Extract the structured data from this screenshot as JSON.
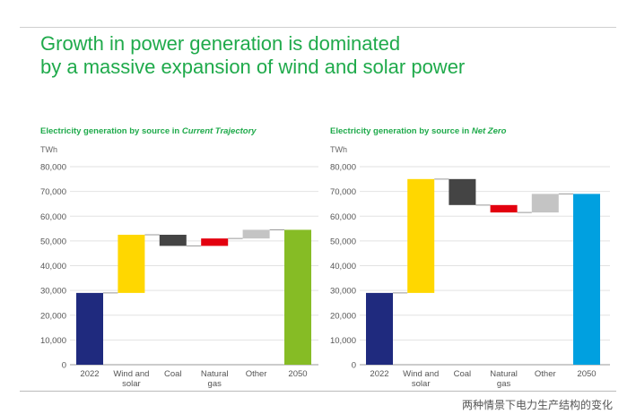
{
  "title_line1": "Growth in power generation is dominated",
  "title_line2": "by a massive expansion of wind and solar power",
  "caption": "两种情景下电力生产结构的变化",
  "chart_data": [
    {
      "type": "waterfall",
      "title_prefix": "Electricity generation by source in ",
      "title_scenario": "Current Trajectory",
      "ylabel": "TWh",
      "ylim": [
        0,
        80000
      ],
      "yticks": [
        "0",
        "10,000",
        "20,000",
        "30,000",
        "40,000",
        "50,000",
        "60,000",
        "70,000",
        "80,000"
      ],
      "categories": [
        "2022",
        "Wind and solar",
        "Coal",
        "Natural gas",
        "Other",
        "2050"
      ],
      "bars": [
        {
          "from": 0,
          "to": 29000,
          "color": "#1f2a7e"
        },
        {
          "from": 29000,
          "to": 52500,
          "color": "#ffd700"
        },
        {
          "from": 52500,
          "to": 48000,
          "color": "#444444"
        },
        {
          "from": 48000,
          "to": 51000,
          "color": "#e3000f"
        },
        {
          "from": 51000,
          "to": 54500,
          "color": "#c4c4c4"
        },
        {
          "from": 0,
          "to": 54500,
          "color": "#86bc25"
        }
      ]
    },
    {
      "type": "waterfall",
      "title_prefix": "Electricity generation by source in ",
      "title_scenario": "Net Zero",
      "ylabel": "TWh",
      "ylim": [
        0,
        80000
      ],
      "yticks": [
        "0",
        "10,000",
        "20,000",
        "30,000",
        "40,000",
        "50,000",
        "60,000",
        "70,000",
        "80,000"
      ],
      "categories": [
        "2022",
        "Wind and solar",
        "Coal",
        "Natural gas",
        "Other",
        "2050"
      ],
      "bars": [
        {
          "from": 0,
          "to": 29000,
          "color": "#1f2a7e"
        },
        {
          "from": 29000,
          "to": 75000,
          "color": "#ffd700"
        },
        {
          "from": 75000,
          "to": 64500,
          "color": "#444444"
        },
        {
          "from": 64500,
          "to": 61500,
          "color": "#e3000f"
        },
        {
          "from": 61500,
          "to": 69000,
          "color": "#c4c4c4"
        },
        {
          "from": 0,
          "to": 69000,
          "color": "#00a0e0"
        }
      ]
    }
  ]
}
